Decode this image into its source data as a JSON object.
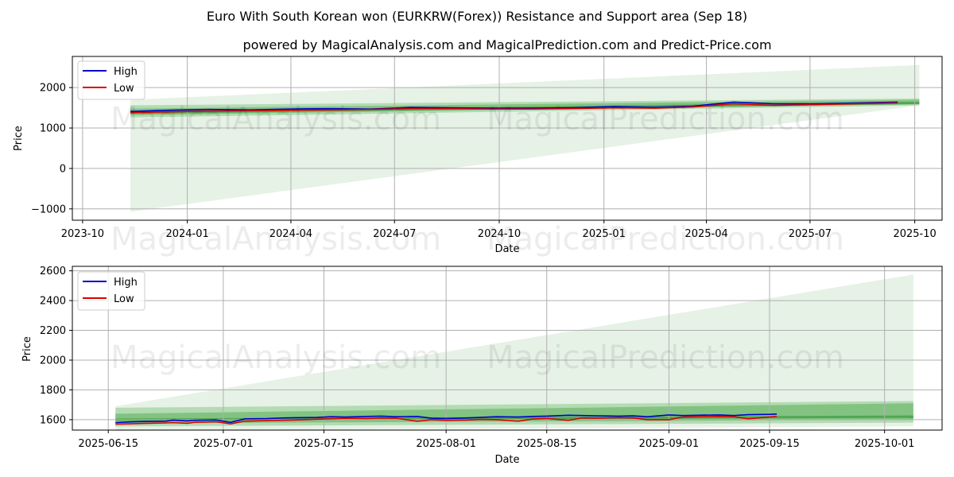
{
  "chart_data": [
    {
      "type": "line",
      "title": "Euro With South Korean won (EURKRW(Forex)) Resistance and Support area (Sep 18)",
      "subtitle": "powered by MagicalAnalysis.com and MagicalPrediction.com and Predict-Price.com",
      "xlabel": "Date",
      "ylabel": "Price",
      "xticks": [
        "2023-10",
        "2024-01",
        "2024-04",
        "2024-07",
        "2024-10",
        "2025-01",
        "2025-04",
        "2025-07",
        "2025-10"
      ],
      "yticks": [
        "−1000",
        "0",
        "1000",
        "2000"
      ],
      "ylim": [
        -1280,
        2770
      ],
      "grid": true,
      "legend": "top-left",
      "x_dates": [
        "2023-11-12",
        "2023-12-15",
        "2024-01-20",
        "2024-02-25",
        "2024-04-01",
        "2024-05-05",
        "2024-06-10",
        "2024-07-15",
        "2024-08-20",
        "2024-09-25",
        "2024-10-30",
        "2024-12-05",
        "2025-01-10",
        "2025-02-15",
        "2025-03-20",
        "2025-04-25",
        "2025-05-30",
        "2025-07-05",
        "2025-08-10",
        "2025-09-16"
      ],
      "series": [
        {
          "name": "High",
          "color": "#0000cc",
          "values": [
            1410,
            1440,
            1460,
            1450,
            1470,
            1480,
            1470,
            1510,
            1500,
            1490,
            1490,
            1500,
            1530,
            1510,
            1540,
            1640,
            1600,
            1600,
            1620,
            1640
          ]
        },
        {
          "name": "Low",
          "color": "#dd0000",
          "values": [
            1380,
            1400,
            1420,
            1430,
            1440,
            1450,
            1460,
            1480,
            1480,
            1470,
            1470,
            1480,
            1500,
            1490,
            1520,
            1600,
            1560,
            1580,
            1600,
            1620
          ]
        }
      ],
      "bands": {
        "x_start": "2023-11-12",
        "x_end": "2025-10-05",
        "light_upper": [
          1700,
          2560
        ],
        "light_lower": [
          -1070,
          1560
        ],
        "mid_upper": [
          1560,
          1730
        ],
        "mid_lower": [
          1260,
          1560
        ],
        "core_upper": [
          1480,
          1700
        ],
        "core_lower": [
          1320,
          1590
        ],
        "center": [
          1380,
          1620
        ]
      }
    },
    {
      "type": "line",
      "xlabel": "Date",
      "ylabel": "Price",
      "xticks": [
        "2025-06-15",
        "2025-07-01",
        "2025-07-15",
        "2025-08-01",
        "2025-08-15",
        "2025-09-01",
        "2025-09-15",
        "2025-10-01"
      ],
      "yticks": [
        "1600",
        "1800",
        "2000",
        "2200",
        "2400",
        "2600"
      ],
      "ylim": [
        1530,
        2630
      ],
      "grid": true,
      "legend": "top-left",
      "x_dates": [
        "2025-06-16",
        "2025-06-18",
        "2025-06-20",
        "2025-06-23",
        "2025-06-24",
        "2025-06-26",
        "2025-06-27",
        "2025-06-30",
        "2025-07-02",
        "2025-07-04",
        "2025-07-07",
        "2025-07-09",
        "2025-07-11",
        "2025-07-14",
        "2025-07-16",
        "2025-07-18",
        "2025-07-21",
        "2025-07-23",
        "2025-07-25",
        "2025-07-28",
        "2025-07-30",
        "2025-08-01",
        "2025-08-04",
        "2025-08-06",
        "2025-08-08",
        "2025-08-11",
        "2025-08-13",
        "2025-08-15",
        "2025-08-18",
        "2025-08-20",
        "2025-08-22",
        "2025-08-25",
        "2025-08-27",
        "2025-08-29",
        "2025-09-01",
        "2025-09-03",
        "2025-09-05",
        "2025-09-08",
        "2025-09-10",
        "2025-09-12",
        "2025-09-15",
        "2025-09-16"
      ],
      "series": [
        {
          "name": "High",
          "color": "#0000cc",
          "values": [
            1580,
            1585,
            1588,
            1590,
            1597,
            1592,
            1596,
            1598,
            1582,
            1605,
            1607,
            1611,
            1613,
            1615,
            1620,
            1618,
            1622,
            1624,
            1620,
            1622,
            1610,
            1608,
            1612,
            1616,
            1620,
            1618,
            1622,
            1624,
            1630,
            1628,
            1626,
            1624,
            1626,
            1620,
            1632,
            1628,
            1630,
            1632,
            1628,
            1634,
            1636,
            1638
          ]
        },
        {
          "name": "Low",
          "color": "#dd0000",
          "values": [
            1570,
            1572,
            1575,
            1578,
            1580,
            1576,
            1582,
            1586,
            1572,
            1590,
            1594,
            1596,
            1598,
            1603,
            1606,
            1610,
            1608,
            1612,
            1610,
            1590,
            1600,
            1596,
            1598,
            1602,
            1600,
            1590,
            1604,
            1608,
            1596,
            1612,
            1610,
            1614,
            1612,
            1600,
            1600,
            1618,
            1620,
            1622,
            1620,
            1606,
            1618,
            1622
          ]
        }
      ],
      "bands": {
        "x_start": "2025-06-16",
        "x_end": "2025-10-05",
        "light_upper": [
          1690,
          2575
        ],
        "light_lower": [
          1525,
          1555
        ],
        "mid_upper": [
          1680,
          1725
        ],
        "mid_lower": [
          1555,
          1580
        ],
        "core_upper": [
          1640,
          1710
        ],
        "core_lower": [
          1575,
          1600
        ],
        "center": [
          1600,
          1620
        ]
      }
    }
  ],
  "watermark": {
    "left": "MagicalAnalysis.com",
    "right": "MagicalPrediction.com"
  },
  "colors": {
    "band_light": "#c7e3c7",
    "band_mid": "#8bc98b",
    "band_core": "#5aaf5a",
    "grid": "#b0b0b0"
  }
}
